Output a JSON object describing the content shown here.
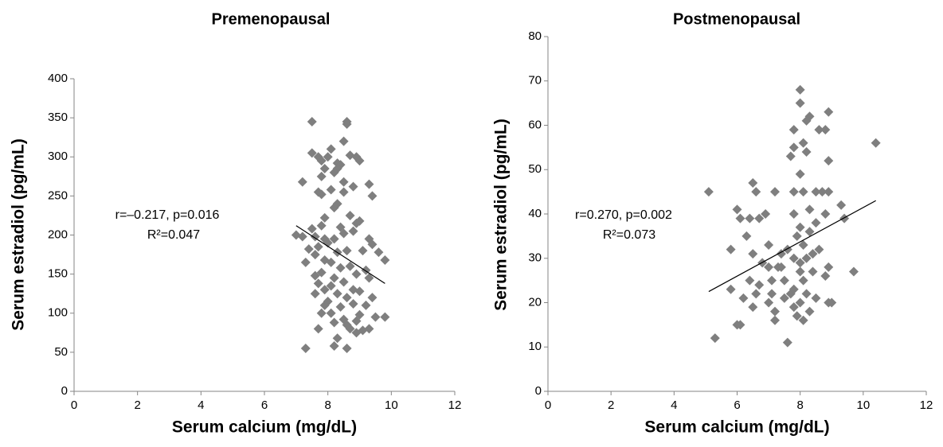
{
  "chart_data": [
    {
      "type": "scatter",
      "title": "Premenopausal",
      "xlabel": "Serum calcium (mg/dL)",
      "ylabel": "Serum estradiol (pg/mL)",
      "xlim": [
        0,
        12
      ],
      "xticks": [
        0,
        2,
        4,
        6,
        8,
        10,
        12
      ],
      "ylim": [
        0,
        400
      ],
      "yticks": [
        0,
        50,
        100,
        150,
        200,
        250,
        300,
        350,
        400
      ],
      "annotations": [
        "r=–0.217, p=0.016",
        "R²=0.047"
      ],
      "trendline": {
        "x": [
          7.0,
          9.8
        ],
        "y": [
          212,
          138
        ],
        "color": "#000000"
      },
      "series": [
        {
          "color": "#7f7f7f",
          "x": [
            7.3,
            7.5,
            8.6,
            8.6,
            8.5,
            8.1,
            7.5,
            7.7,
            7.8,
            8.0,
            8.7,
            8.9,
            9.0,
            8.3,
            8.4,
            8.3,
            7.9,
            7.8,
            8.2,
            7.2,
            8.5,
            9.3,
            8.8,
            8.1,
            7.7,
            7.8,
            9.4,
            8.5,
            8.3,
            8.2,
            7.9,
            8.7,
            9.0,
            8.9,
            8.4,
            7.5,
            7.8,
            8.8,
            8.5,
            7.0,
            7.2,
            7.6,
            7.9,
            8.2,
            9.3,
            9.4,
            8.0,
            7.7,
            7.4,
            8.6,
            8.3,
            9.1,
            7.6,
            9.6,
            9.8,
            7.9,
            8.1,
            7.3,
            8.7,
            8.4,
            9.2,
            7.8,
            8.9,
            7.6,
            8.2,
            9.3,
            7.7,
            8.5,
            8.1,
            8.8,
            7.9,
            9.0,
            8.3,
            7.6,
            8.6,
            9.4,
            8.0,
            8.8,
            7.9,
            9.2,
            8.4,
            8.1,
            7.8,
            9.0,
            9.5,
            9.8,
            8.5,
            8.9,
            8.2,
            8.6,
            7.7,
            8.7,
            9.3,
            9.1,
            8.9,
            8.3,
            8.2,
            8.6
          ],
          "y": [
            55,
            345,
            345,
            342,
            320,
            310,
            305,
            300,
            295,
            300,
            302,
            300,
            295,
            292,
            290,
            285,
            285,
            275,
            280,
            268,
            268,
            265,
            262,
            258,
            255,
            252,
            250,
            255,
            240,
            235,
            222,
            225,
            218,
            215,
            210,
            208,
            212,
            205,
            202,
            200,
            198,
            198,
            195,
            195,
            195,
            188,
            190,
            185,
            182,
            180,
            178,
            180,
            175,
            178,
            168,
            168,
            165,
            165,
            160,
            158,
            155,
            152,
            150,
            148,
            145,
            145,
            138,
            140,
            135,
            130,
            130,
            128,
            125,
            125,
            120,
            120,
            115,
            112,
            110,
            110,
            108,
            100,
            100,
            98,
            95,
            95,
            92,
            90,
            88,
            85,
            80,
            80,
            80,
            78,
            75,
            68,
            58,
            55
          ]
        }
      ]
    },
    {
      "type": "scatter",
      "title": "Postmenopausal",
      "xlabel": "Serum calcium (mg/dL)",
      "ylabel": "Serum estradiol (pg/mL)",
      "xlim": [
        0,
        12
      ],
      "xticks": [
        0,
        2,
        4,
        6,
        8,
        10,
        12
      ],
      "ylim": [
        0,
        80
      ],
      "yticks": [
        0,
        10,
        20,
        30,
        40,
        50,
        60,
        70,
        80
      ],
      "annotations": [
        "r=0.270, p=0.002",
        "R²=0.073"
      ],
      "trendline": {
        "x": [
          5.1,
          10.4
        ],
        "y": [
          22.5,
          43
        ],
        "color": "#000000"
      },
      "series": [
        {
          "color": "#7f7f7f",
          "x": [
            5.1,
            5.3,
            5.8,
            5.8,
            6.0,
            6.1,
            6.0,
            6.1,
            6.2,
            6.3,
            6.4,
            6.5,
            6.6,
            6.5,
            6.4,
            6.6,
            6.5,
            6.7,
            6.8,
            6.7,
            7.0,
            7.0,
            7.1,
            7.2,
            7.1,
            7.2,
            7.2,
            7.4,
            7.3,
            7.5,
            7.5,
            7.6,
            7.6,
            7.7,
            7.7,
            7.8,
            7.8,
            7.8,
            7.8,
            7.9,
            7.8,
            7.8,
            7.8,
            7.9,
            8.0,
            8.0,
            8.0,
            8.0,
            8.0,
            8.0,
            8.0,
            8.1,
            8.1,
            8.1,
            8.1,
            8.1,
            8.2,
            8.2,
            8.2,
            8.2,
            8.3,
            8.3,
            8.3,
            8.3,
            8.4,
            8.4,
            8.5,
            8.5,
            8.5,
            8.6,
            8.6,
            8.7,
            8.8,
            8.8,
            8.8,
            8.9,
            8.9,
            8.9,
            8.9,
            8.9,
            9.0,
            9.3,
            9.4,
            9.7,
            10.4,
            6.9,
            7.4,
            7.0
          ],
          "y": [
            45,
            12,
            32,
            23,
            15,
            15,
            41,
            39,
            21,
            35,
            39,
            47,
            45,
            31,
            25,
            22,
            19,
            39,
            29,
            24,
            20,
            33,
            25,
            45,
            22,
            18,
            16,
            31,
            28,
            21,
            25,
            32,
            11,
            22,
            53,
            59,
            55,
            45,
            40,
            35,
            30,
            23,
            19,
            17,
            68,
            65,
            49,
            37,
            29,
            27,
            20,
            56,
            45,
            33,
            25,
            16,
            61,
            54,
            30,
            22,
            62,
            41,
            36,
            18,
            31,
            27,
            45,
            38,
            21,
            59,
            32,
            45,
            59,
            40,
            26,
            52,
            45,
            63,
            28,
            20,
            20,
            42,
            39,
            27,
            56,
            40,
            28,
            28
          ]
        }
      ]
    }
  ]
}
